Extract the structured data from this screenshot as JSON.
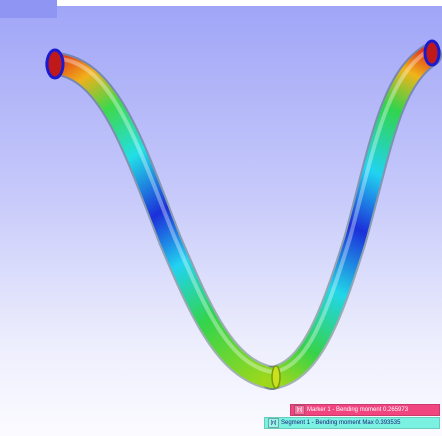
{
  "viewport": {
    "background_top": "#9fa4f7",
    "background_bottom": "#fbfbff",
    "object": "bent-tube"
  },
  "legend": {
    "marker": {
      "tag": "[n]",
      "text": "Marker 1 - Bending moment 0.265973",
      "color": "#f0457e"
    },
    "segment": {
      "tag": "[n]",
      "text": "Segment 1 - Bending moment Max 0.393535",
      "color": "#7bf1e1"
    }
  },
  "colormap": [
    "#1a1ad0",
    "#1a7ff0",
    "#21e4f0",
    "#22c84a",
    "#a8e01a",
    "#f0c21a",
    "#f03c1a"
  ]
}
